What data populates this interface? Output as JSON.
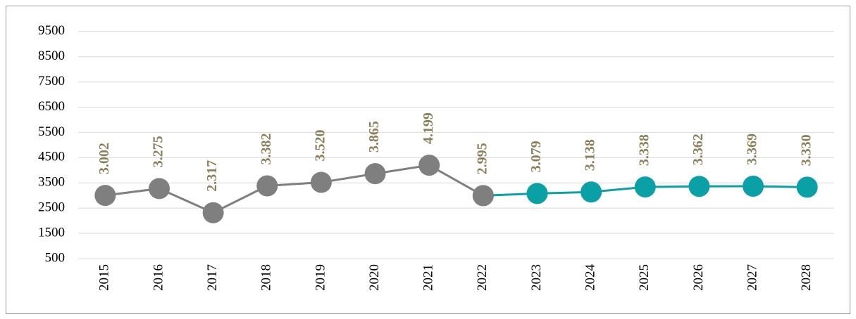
{
  "chart_data": {
    "type": "line",
    "categories": [
      "2015",
      "2016",
      "2017",
      "2018",
      "2019",
      "2020",
      "2021",
      "2022",
      "2023",
      "2024",
      "2025",
      "2026",
      "2027",
      "2028"
    ],
    "series": [
      {
        "color": "#0aa0a6",
        "values": [
          null,
          null,
          null,
          null,
          null,
          null,
          null,
          2995,
          3079,
          3138,
          3338,
          3362,
          3369,
          3330
        ],
        "value_labels": [
          null,
          null,
          null,
          null,
          null,
          null,
          null,
          null,
          "3.079",
          "3.138",
          "3.338",
          "3.362",
          "3.369",
          "3.330"
        ]
      },
      {
        "color": "#7f7f7f",
        "values": [
          3002,
          3275,
          2317,
          3382,
          3520,
          3865,
          4199,
          2995,
          null,
          null,
          null,
          null,
          null,
          null
        ],
        "value_labels": [
          "3.002",
          "3.275",
          "2.317",
          "3.382",
          "3.520",
          "3.865",
          "4.199",
          "2.995",
          null,
          null,
          null,
          null,
          null,
          null
        ]
      }
    ],
    "label_color": "#8c7f57",
    "ylim": [
      500,
      9800
    ],
    "yticks": [
      500,
      1500,
      2500,
      3500,
      4500,
      5500,
      6500,
      7500,
      8500,
      9500
    ],
    "grid": true
  }
}
